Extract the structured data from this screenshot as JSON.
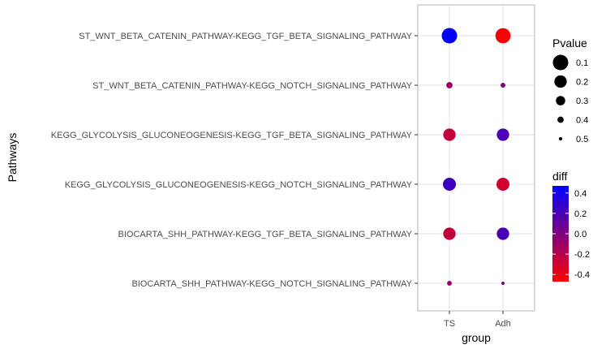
{
  "chart_data": {
    "type": "scatter",
    "xlabel": "group",
    "ylabel": "Pathways",
    "x_categories": [
      "TS",
      "Adh"
    ],
    "y_categories": [
      "ST_WNT_BETA_CATENIN_PATHWAY-KEGG_TGF_BETA_SIGNALING_PATHWAY",
      "ST_WNT_BETA_CATENIN_PATHWAY-KEGG_NOTCH_SIGNALING_PATHWAY",
      "KEGG_GLYCOLYSIS_GLUCONEOGENESIS-KEGG_TGF_BETA_SIGNALING_PATHWAY",
      "KEGG_GLYCOLYSIS_GLUCONEOGENESIS-KEGG_NOTCH_SIGNALING_PATHWAY",
      "BIOCARTA_SHH_PATHWAY-KEGG_TGF_BETA_SIGNALING_PATHWAY",
      "BIOCARTA_SHH_PATHWAY-KEGG_NOTCH_SIGNALING_PATHWAY"
    ],
    "points": [
      {
        "pathway": 0,
        "group": "TS",
        "pvalue": 0.1,
        "diff": 0.47
      },
      {
        "pathway": 0,
        "group": "Adh",
        "pvalue": 0.11,
        "diff": -0.45
      },
      {
        "pathway": 1,
        "group": "TS",
        "pvalue": 0.4,
        "diff": -0.1
      },
      {
        "pathway": 1,
        "group": "Adh",
        "pvalue": 0.45,
        "diff": 0.0
      },
      {
        "pathway": 2,
        "group": "TS",
        "pvalue": 0.2,
        "diff": -0.25
      },
      {
        "pathway": 2,
        "group": "Adh",
        "pvalue": 0.2,
        "diff": 0.2
      },
      {
        "pathway": 3,
        "group": "TS",
        "pvalue": 0.18,
        "diff": 0.25
      },
      {
        "pathway": 3,
        "group": "Adh",
        "pvalue": 0.18,
        "diff": -0.3
      },
      {
        "pathway": 4,
        "group": "TS",
        "pvalue": 0.2,
        "diff": -0.25
      },
      {
        "pathway": 4,
        "group": "Adh",
        "pvalue": 0.2,
        "diff": 0.2
      },
      {
        "pathway": 5,
        "group": "TS",
        "pvalue": 0.45,
        "diff": -0.1
      },
      {
        "pathway": 5,
        "group": "Adh",
        "pvalue": 0.5,
        "diff": 0.0
      }
    ],
    "size_legend": {
      "title": "Pvalue",
      "breaks": [
        0.1,
        0.2,
        0.3,
        0.4,
        0.5
      ],
      "labels": [
        "0.1",
        "0.2",
        "0.3",
        "0.4",
        "0.5"
      ],
      "range": [
        0.1,
        0.5
      ]
    },
    "color_legend": {
      "title": "diff",
      "breaks": [
        0.4,
        0.2,
        0.0,
        -0.2,
        -0.4
      ],
      "labels": [
        "0.4",
        "0.2",
        "0.0",
        "-0.2",
        "-0.4"
      ],
      "range": [
        -0.47,
        0.47
      ],
      "low_color": "#ff0000",
      "high_color": "#0000ff"
    },
    "grid": true,
    "legend_position": "right"
  }
}
